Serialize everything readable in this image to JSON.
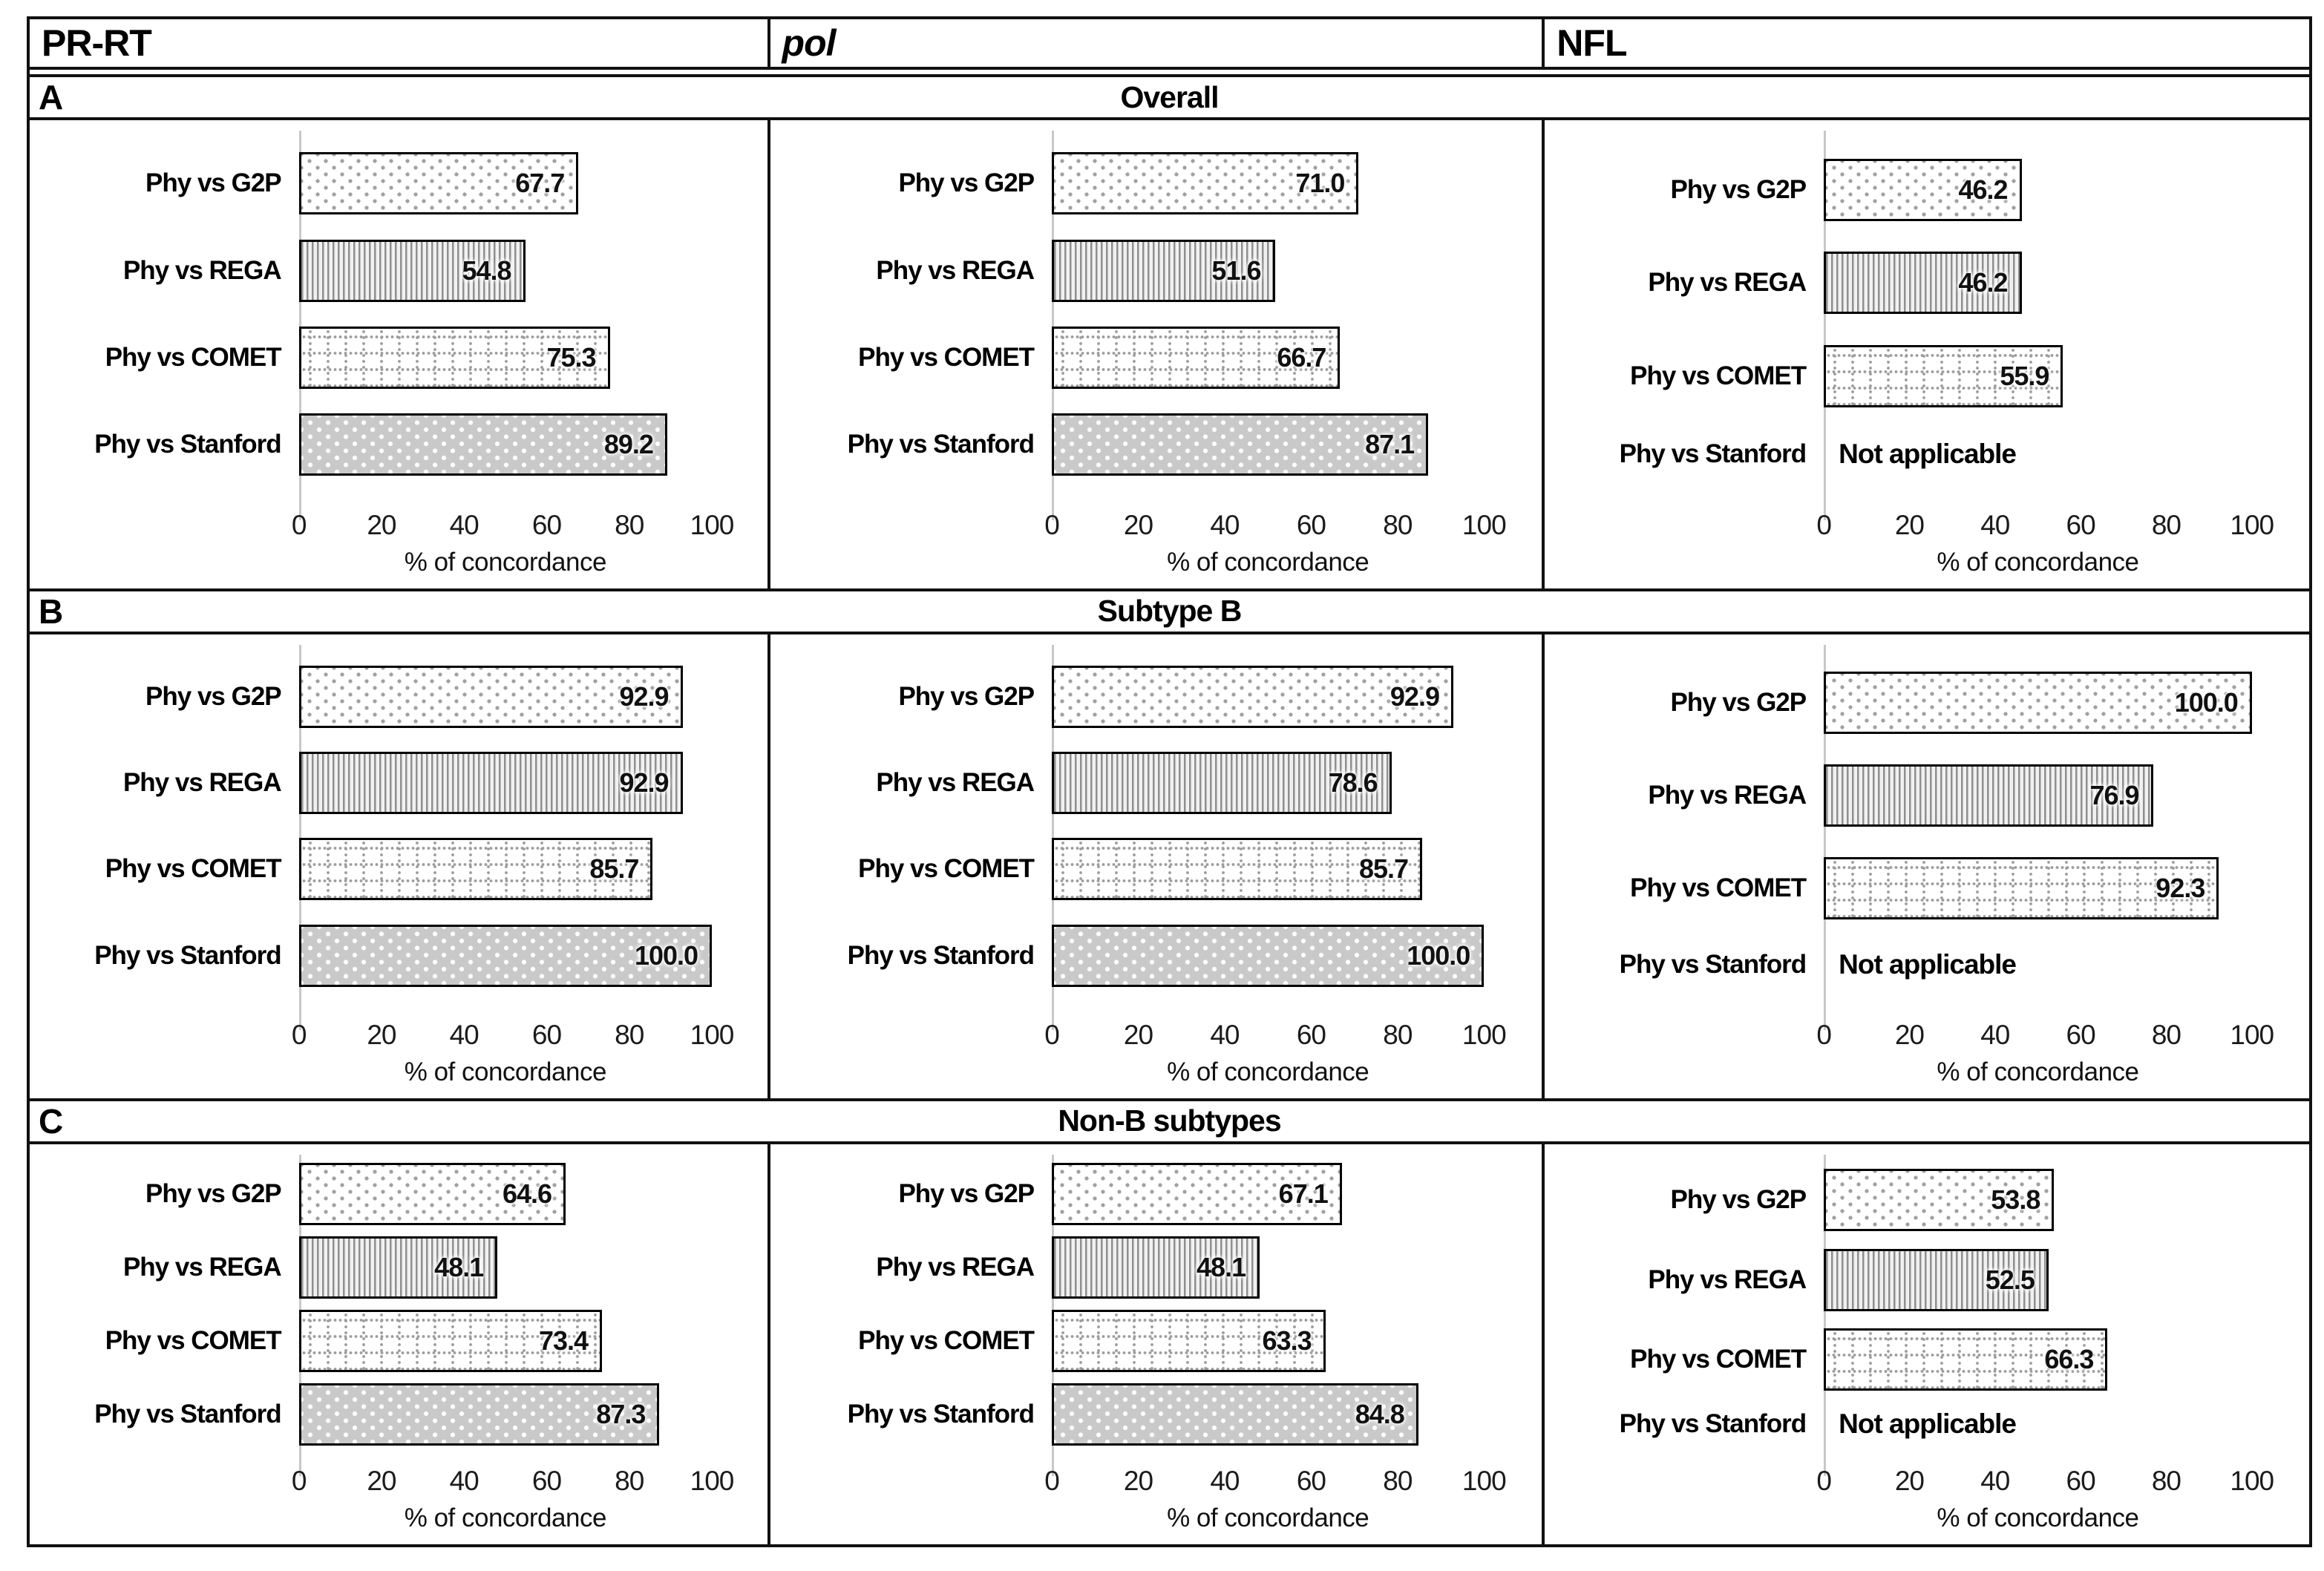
{
  "figure": {
    "column_headers": [
      {
        "label": "PR-RT",
        "italic": false
      },
      {
        "label": "pol",
        "italic": true
      },
      {
        "label": "NFL",
        "italic": false
      }
    ],
    "sections": [
      {
        "letter": "A",
        "title": "Overall"
      },
      {
        "letter": "B",
        "title": "Subtype B"
      },
      {
        "letter": "C",
        "title": "Non-B subtypes"
      }
    ],
    "tick_labels": [
      "0",
      "20",
      "40",
      "60",
      "80",
      "100"
    ],
    "xlabel": "% of concordance",
    "not_applicable": "Not applicable",
    "colors": {
      "border": "#111111",
      "axis_line": "#c8c8c8",
      "stanford_fill": "#c9c9c9",
      "pattern_gray": "#9a9a9a",
      "text": "#000000"
    },
    "bar_patterns": {
      "phy_vs_g2p": "sparse-gray-dots-on-white",
      "phy_vs_rega": "fine-vertical-gray-stripes",
      "phy_vs_comet": "dotted-grid-on-white",
      "phy_vs_stanford": "white-polka-dots-on-gray"
    }
  },
  "chart_data": [
    {
      "section": "Overall",
      "region": "PR-RT",
      "type": "bar",
      "orientation": "horizontal",
      "xlabel": "% of concordance",
      "xlim": [
        0,
        100
      ],
      "xticks": [
        0,
        20,
        40,
        60,
        80,
        100
      ],
      "categories": [
        "Phy vs G2P",
        "Phy vs REGA",
        "Phy vs COMET",
        "Phy vs Stanford"
      ],
      "values": [
        67.7,
        54.8,
        75.3,
        89.2
      ],
      "value_labels": [
        "67.7",
        "54.8",
        "75.3",
        "89.2"
      ]
    },
    {
      "section": "Overall",
      "region": "pol",
      "type": "bar",
      "orientation": "horizontal",
      "xlabel": "% of concordance",
      "xlim": [
        0,
        100
      ],
      "xticks": [
        0,
        20,
        40,
        60,
        80,
        100
      ],
      "categories": [
        "Phy vs G2P",
        "Phy vs REGA",
        "Phy vs COMET",
        "Phy vs Stanford"
      ],
      "values": [
        71.0,
        51.6,
        66.7,
        87.1
      ],
      "value_labels": [
        "71.0",
        "51.6",
        "66.7",
        "87.1"
      ]
    },
    {
      "section": "Overall",
      "region": "NFL",
      "type": "bar",
      "orientation": "horizontal",
      "xlabel": "% of concordance",
      "xlim": [
        0,
        100
      ],
      "xticks": [
        0,
        20,
        40,
        60,
        80,
        100
      ],
      "categories": [
        "Phy vs G2P",
        "Phy vs REGA",
        "Phy vs COMET",
        "Phy vs Stanford"
      ],
      "values": [
        46.2,
        46.2,
        55.9,
        null
      ],
      "value_labels": [
        "46.2",
        "46.2",
        "55.9",
        "Not applicable"
      ]
    },
    {
      "section": "Subtype B",
      "region": "PR-RT",
      "type": "bar",
      "orientation": "horizontal",
      "xlabel": "% of concordance",
      "xlim": [
        0,
        100
      ],
      "xticks": [
        0,
        20,
        40,
        60,
        80,
        100
      ],
      "categories": [
        "Phy vs G2P",
        "Phy vs REGA",
        "Phy vs COMET",
        "Phy vs Stanford"
      ],
      "values": [
        92.9,
        92.9,
        85.7,
        100.0
      ],
      "value_labels": [
        "92.9",
        "92.9",
        "85.7",
        "100.0"
      ]
    },
    {
      "section": "Subtype B",
      "region": "pol",
      "type": "bar",
      "orientation": "horizontal",
      "xlabel": "% of concordance",
      "xlim": [
        0,
        100
      ],
      "xticks": [
        0,
        20,
        40,
        60,
        80,
        100
      ],
      "categories": [
        "Phy vs G2P",
        "Phy vs REGA",
        "Phy vs COMET",
        "Phy vs Stanford"
      ],
      "values": [
        92.9,
        78.6,
        85.7,
        100.0
      ],
      "value_labels": [
        "92.9",
        "78.6",
        "85.7",
        "100.0"
      ]
    },
    {
      "section": "Subtype B",
      "region": "NFL",
      "type": "bar",
      "orientation": "horizontal",
      "xlabel": "% of concordance",
      "xlim": [
        0,
        100
      ],
      "xticks": [
        0,
        20,
        40,
        60,
        80,
        100
      ],
      "categories": [
        "Phy vs G2P",
        "Phy vs REGA",
        "Phy vs COMET",
        "Phy vs Stanford"
      ],
      "values": [
        100.0,
        76.9,
        92.3,
        null
      ],
      "value_labels": [
        "100.0",
        "76.9",
        "92.3",
        "Not applicable"
      ]
    },
    {
      "section": "Non-B subtypes",
      "region": "PR-RT",
      "type": "bar",
      "orientation": "horizontal",
      "xlabel": "% of concordance",
      "xlim": [
        0,
        100
      ],
      "xticks": [
        0,
        20,
        40,
        60,
        80,
        100
      ],
      "categories": [
        "Phy vs G2P",
        "Phy vs REGA",
        "Phy vs COMET",
        "Phy vs Stanford"
      ],
      "values": [
        64.6,
        48.1,
        73.4,
        87.3
      ],
      "value_labels": [
        "64.6",
        "48.1",
        "73.4",
        "87.3"
      ]
    },
    {
      "section": "Non-B subtypes",
      "region": "pol",
      "type": "bar",
      "orientation": "horizontal",
      "xlabel": "% of concordance",
      "xlim": [
        0,
        100
      ],
      "xticks": [
        0,
        20,
        40,
        60,
        80,
        100
      ],
      "categories": [
        "Phy vs G2P",
        "Phy vs REGA",
        "Phy vs COMET",
        "Phy vs Stanford"
      ],
      "values": [
        67.1,
        48.1,
        63.3,
        84.8
      ],
      "value_labels": [
        "67.1",
        "48.1",
        "63.3",
        "84.8"
      ]
    },
    {
      "section": "Non-B subtypes",
      "region": "NFL",
      "type": "bar",
      "orientation": "horizontal",
      "xlabel": "% of concordance",
      "xlim": [
        0,
        100
      ],
      "xticks": [
        0,
        20,
        40,
        60,
        80,
        100
      ],
      "categories": [
        "Phy vs G2P",
        "Phy vs REGA",
        "Phy vs COMET",
        "Phy vs Stanford"
      ],
      "values": [
        53.8,
        52.5,
        66.3,
        null
      ],
      "value_labels": [
        "53.8",
        "52.5",
        "66.3",
        "Not applicable"
      ]
    }
  ]
}
